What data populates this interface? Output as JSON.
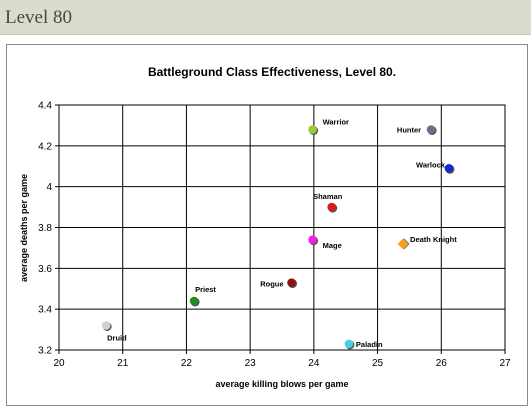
{
  "page": {
    "section_title": "Level 80"
  },
  "chart_data": {
    "type": "scatter",
    "title": "Battleground Class Effectiveness, Level 80.",
    "xlabel": "average killing blows per game",
    "ylabel": "average deaths per game",
    "xlim": [
      20,
      27
    ],
    "ylim": [
      3.2,
      4.4
    ],
    "xticks": [
      "20",
      "21",
      "22",
      "23",
      "24",
      "25",
      "26",
      "27"
    ],
    "yticks": [
      "3.2",
      "3.4",
      "3.6",
      "3.8",
      "4",
      "4.2",
      "4.4"
    ],
    "grid": true,
    "points": [
      {
        "label": "Warrior",
        "x": 23.98,
        "y": 4.28,
        "color": "#9acd32",
        "marker": "circle"
      },
      {
        "label": "Hunter",
        "x": 25.84,
        "y": 4.28,
        "color": "#6e6e8c",
        "marker": "circle"
      },
      {
        "label": "Warlock",
        "x": 26.12,
        "y": 4.09,
        "color": "#1a28d2",
        "marker": "circle"
      },
      {
        "label": "Shaman",
        "x": 24.28,
        "y": 3.9,
        "color": "#d21e1e",
        "marker": "circle"
      },
      {
        "label": "Mage",
        "x": 23.98,
        "y": 3.74,
        "color": "#f01ee6",
        "marker": "circle"
      },
      {
        "label": "Death Knight",
        "x": 25.4,
        "y": 3.72,
        "color": "#f5a01e",
        "marker": "diamond"
      },
      {
        "label": "Rogue",
        "x": 23.65,
        "y": 3.53,
        "color": "#8c1414",
        "marker": "circle"
      },
      {
        "label": "Priest",
        "x": 22.12,
        "y": 3.44,
        "color": "#1e8c1e",
        "marker": "circle"
      },
      {
        "label": "Druid",
        "x": 20.74,
        "y": 3.32,
        "color": "#d2d2d2",
        "marker": "circle"
      },
      {
        "label": "Paladin",
        "x": 24.55,
        "y": 3.23,
        "color": "#46d2dc",
        "marker": "circle"
      }
    ]
  }
}
